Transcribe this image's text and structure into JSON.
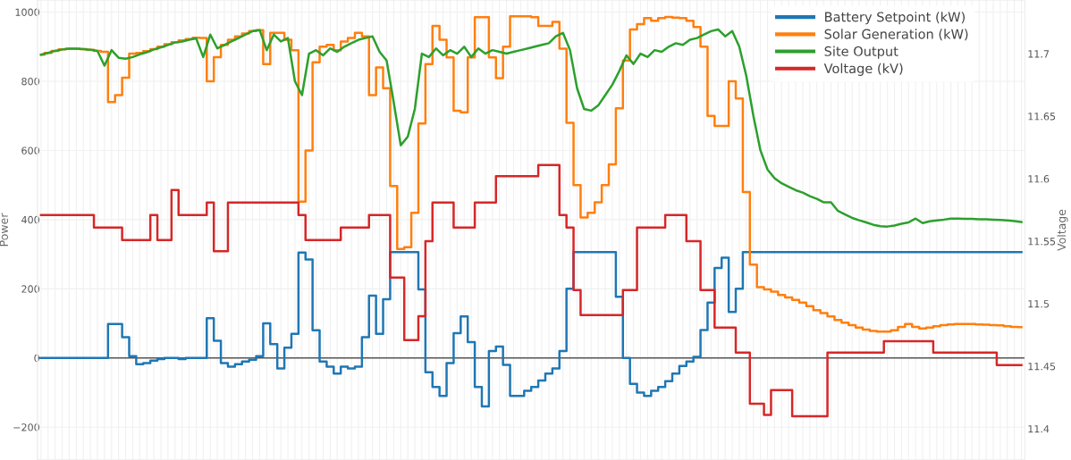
{
  "chart_data": {
    "type": "line",
    "categories": [
      null,
      null,
      null,
      null,
      null,
      null,
      null,
      null,
      null,
      null,
      null,
      null,
      null,
      null,
      null,
      null,
      null,
      null,
      null,
      null,
      null,
      null,
      null,
      null,
      null,
      null,
      null,
      null,
      null,
      null,
      null,
      null,
      null,
      null,
      null,
      null,
      null,
      null,
      null,
      null,
      null,
      null,
      null,
      null,
      null,
      null,
      null,
      null,
      null,
      null,
      null,
      null,
      null,
      null,
      null,
      null,
      null,
      null,
      null,
      null,
      null,
      null,
      null,
      null,
      null,
      null,
      null,
      null,
      null,
      null,
      null,
      null,
      null,
      null,
      null,
      null,
      null,
      null,
      null,
      null,
      null,
      null,
      null,
      null,
      null,
      null,
      null,
      null,
      null,
      null,
      null,
      null,
      null,
      null,
      null,
      null,
      null,
      null,
      null,
      null,
      null,
      null,
      null,
      null,
      null,
      null,
      null,
      null,
      null,
      null,
      null,
      null,
      null,
      null,
      null,
      null,
      null,
      null,
      null,
      null,
      null,
      null,
      null,
      null,
      null,
      null,
      null,
      null,
      null,
      null,
      null,
      null,
      null,
      null,
      null,
      null,
      null,
      null,
      null,
      null
    ],
    "ylabel": "Power",
    "y2label": "Voltage",
    "ylim": [
      -295,
      1035
    ],
    "yticks": [
      -200,
      0,
      200,
      400,
      600,
      800,
      1000
    ],
    "y2lim": [
      11.375,
      11.743
    ],
    "y2ticks": [
      11.4,
      11.45,
      11.5,
      11.55,
      11.6,
      11.65,
      11.7
    ],
    "grid": true,
    "legend": "top right",
    "tick_labels": "y",
    "ref_lines": [
      {
        "axis": "y",
        "value": 0,
        "color": "#555555"
      }
    ],
    "series": [
      {
        "name": "Battery Setpoint (kW)",
        "type": "step",
        "color": "#1f77b4",
        "values": [
          0,
          0,
          0,
          0,
          0,
          0,
          0,
          0,
          0,
          0,
          98,
          98,
          60,
          5,
          -18,
          -15,
          -8,
          -3,
          0,
          0,
          -3,
          0,
          0,
          0,
          115,
          50,
          -15,
          -25,
          -18,
          -10,
          -5,
          5,
          100,
          40,
          -30,
          30,
          70,
          305,
          285,
          80,
          -10,
          -25,
          -45,
          -25,
          -30,
          -25,
          60,
          180,
          70,
          170,
          306,
          306,
          306,
          306,
          198,
          -41,
          -84,
          -110,
          -15,
          72,
          120,
          46,
          -84,
          -140,
          20,
          33,
          -20,
          -110,
          -110,
          -95,
          -84,
          -65,
          -45,
          -30,
          20,
          200,
          306,
          306,
          306,
          306,
          306,
          306,
          177,
          0,
          -75,
          -100,
          -110,
          -95,
          -84,
          -67,
          -45,
          -23,
          -10,
          3,
          81,
          160,
          260,
          290,
          133,
          200,
          306,
          306,
          306,
          306,
          306,
          306,
          306,
          306,
          306,
          306,
          306,
          306,
          306,
          306,
          306,
          306,
          306,
          306,
          306,
          306,
          306,
          306,
          306,
          306,
          306,
          306,
          306,
          306,
          306,
          306,
          306,
          306,
          306,
          306,
          306,
          306,
          306,
          306,
          306,
          306
        ]
      },
      {
        "name": "Solar Generation (kW)",
        "type": "step",
        "color": "#ff7f0e",
        "values": [
          877,
          882,
          888,
          892,
          894,
          894,
          893,
          891,
          888,
          885,
          740,
          760,
          810,
          880,
          882,
          887,
          893,
          900,
          907,
          913,
          918,
          922,
          926,
          925,
          800,
          870,
          905,
          920,
          930,
          938,
          945,
          948,
          850,
          940,
          940,
          920,
          890,
          452,
          600,
          855,
          900,
          905,
          890,
          915,
          925,
          940,
          930,
          760,
          840,
          780,
          497,
          315,
          320,
          420,
          678,
          850,
          960,
          920,
          869,
          715,
          710,
          869,
          985,
          985,
          869,
          809,
          900,
          988,
          988,
          988,
          985,
          960,
          960,
          972,
          894,
          680,
          500,
          406,
          420,
          450,
          500,
          560,
          722,
          860,
          950,
          965,
          983,
          975,
          983,
          986,
          984,
          983,
          975,
          957,
          900,
          700,
          671,
          671,
          800,
          750,
          480,
          270,
          205,
          198,
          192,
          182,
          175,
          168,
          160,
          150,
          138,
          130,
          120,
          110,
          102,
          95,
          88,
          82,
          78,
          76,
          76,
          80,
          90,
          98,
          90,
          85,
          88,
          92,
          95,
          97,
          98,
          98,
          98,
          97,
          96,
          95,
          94,
          92,
          90,
          89
        ]
      },
      {
        "name": "Site Output",
        "color": "#2ca02c",
        "values": [
          877,
          882,
          888,
          892,
          894,
          894,
          893,
          891,
          888,
          845,
          890,
          868,
          865,
          870,
          878,
          884,
          892,
          898,
          905,
          912,
          915,
          920,
          924,
          870,
          935,
          895,
          905,
          915,
          925,
          935,
          945,
          948,
          890,
          935,
          915,
          925,
          800,
          760,
          880,
          890,
          875,
          895,
          885,
          900,
          910,
          920,
          925,
          930,
          885,
          860,
          740,
          615,
          640,
          720,
          880,
          870,
          895,
          875,
          890,
          880,
          900,
          870,
          895,
          880,
          890,
          885,
          880,
          885,
          890,
          895,
          900,
          905,
          910,
          930,
          940,
          890,
          780,
          720,
          715,
          730,
          760,
          790,
          830,
          875,
          850,
          880,
          870,
          890,
          885,
          900,
          910,
          905,
          920,
          925,
          935,
          945,
          950,
          930,
          945,
          900,
          815,
          700,
          600,
          545,
          520,
          505,
          495,
          485,
          478,
          468,
          460,
          450,
          450,
          425,
          415,
          405,
          398,
          392,
          385,
          381,
          380,
          383,
          388,
          392,
          403,
          390,
          395,
          398,
          400,
          403,
          403,
          402,
          402,
          401,
          401,
          400,
          399,
          398,
          396,
          393
        ]
      },
      {
        "name": "Voltage (kV)",
        "type": "step",
        "axis": "y2",
        "color": "#d62728",
        "values": [
          11.571,
          11.571,
          11.571,
          11.571,
          11.571,
          11.571,
          11.571,
          11.571,
          11.561,
          11.561,
          11.561,
          11.561,
          11.551,
          11.551,
          11.551,
          11.551,
          11.571,
          11.551,
          11.551,
          11.591,
          11.571,
          11.571,
          11.571,
          11.571,
          11.581,
          11.542,
          11.542,
          11.581,
          11.581,
          11.581,
          11.581,
          11.581,
          11.581,
          11.581,
          11.581,
          11.581,
          11.581,
          11.571,
          11.551,
          11.551,
          11.551,
          11.551,
          11.551,
          11.561,
          11.561,
          11.561,
          11.561,
          11.571,
          11.571,
          11.571,
          11.521,
          11.521,
          11.471,
          11.471,
          11.49,
          11.55,
          11.581,
          11.581,
          11.581,
          11.561,
          11.561,
          11.561,
          11.581,
          11.581,
          11.581,
          11.602,
          11.602,
          11.602,
          11.602,
          11.602,
          11.602,
          11.611,
          11.611,
          11.611,
          11.571,
          11.561,
          11.511,
          11.491,
          11.491,
          11.491,
          11.491,
          11.491,
          11.491,
          11.511,
          11.511,
          11.561,
          11.561,
          11.561,
          11.561,
          11.571,
          11.571,
          11.571,
          11.55,
          11.55,
          11.511,
          11.511,
          11.481,
          11.481,
          11.481,
          11.461,
          11.461,
          11.42,
          11.42,
          11.411,
          11.431,
          11.431,
          11.431,
          11.41,
          11.41,
          11.41,
          11.41,
          11.41,
          11.461,
          11.461,
          11.461,
          11.461,
          11.461,
          11.461,
          11.461,
          11.461,
          11.47,
          11.47,
          11.47,
          11.47,
          11.47,
          11.47,
          11.47,
          11.461,
          11.461,
          11.461,
          11.461,
          11.461,
          11.461,
          11.461,
          11.461,
          11.461,
          11.451,
          11.451,
          11.451,
          11.451
        ]
      }
    ]
  }
}
